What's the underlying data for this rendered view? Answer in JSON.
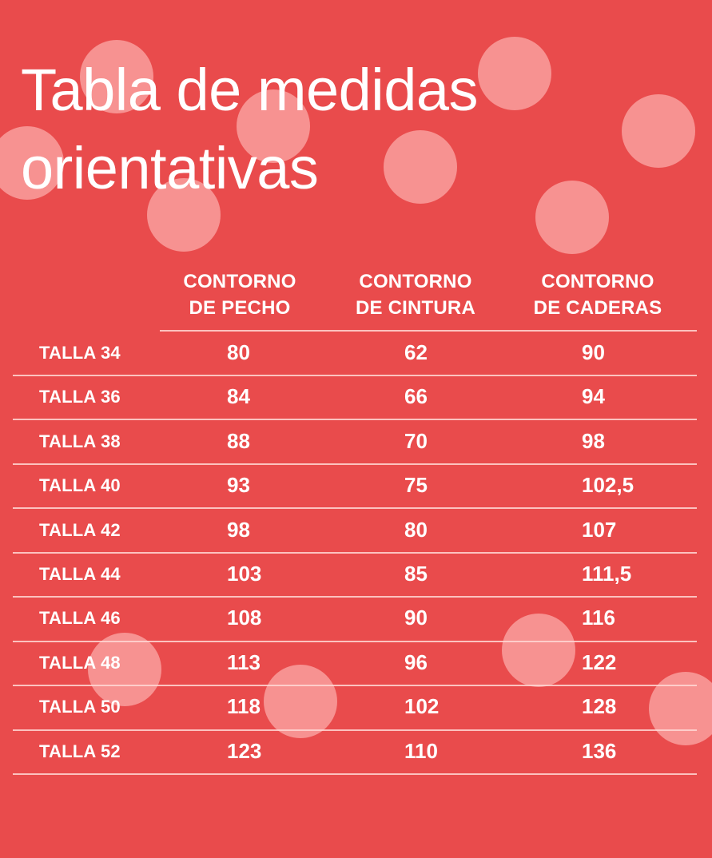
{
  "title_lines": [
    "Tabla de medidas",
    "orientativas"
  ],
  "headers": [
    [
      "CONTORNO",
      "DE PECHO"
    ],
    [
      "CONTORNO",
      "DE CINTURA"
    ],
    [
      "CONTORNO",
      "DE CADERAS"
    ]
  ],
  "rows": [
    {
      "label": "TALLA 34",
      "pecho": "80",
      "cintura": "62",
      "caderas": "90"
    },
    {
      "label": "TALLA 36",
      "pecho": "84",
      "cintura": "66",
      "caderas": "94"
    },
    {
      "label": "TALLA 38",
      "pecho": "88",
      "cintura": "70",
      "caderas": "98"
    },
    {
      "label": "TALLA 40",
      "pecho": "93",
      "cintura": "75",
      "caderas": "102,5"
    },
    {
      "label": "TALLA 42",
      "pecho": "98",
      "cintura": "80",
      "caderas": "107"
    },
    {
      "label": "TALLA 44",
      "pecho": "103",
      "cintura": "85",
      "caderas": "111,5"
    },
    {
      "label": "TALLA 46",
      "pecho": "108",
      "cintura": "90",
      "caderas": "116"
    },
    {
      "label": "TALLA 48",
      "pecho": "113",
      "cintura": "96",
      "caderas": "122"
    },
    {
      "label": "TALLA 50",
      "pecho": "118",
      "cintura": "102",
      "caderas": "128"
    },
    {
      "label": "TALLA 52",
      "pecho": "123",
      "cintura": "110",
      "caderas": "136"
    }
  ],
  "colors": {
    "background": "#e94b4c",
    "dot": "#ffbebc",
    "text": "#ffffff"
  }
}
